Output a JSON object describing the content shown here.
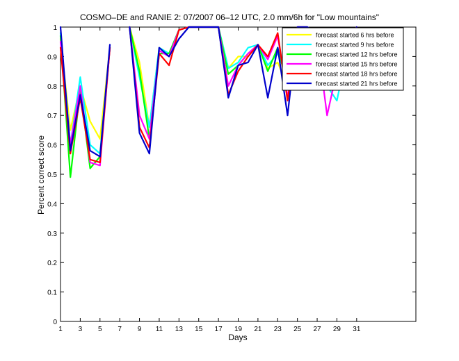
{
  "figure": {
    "title": "COSMO–DE and RANIE 2: 07/2007 06–12 UTC, 2.0 mm/6h for \"Low mountains\"",
    "xlabel": "Days",
    "ylabel": "Percent correct score"
  },
  "chart_data": {
    "type": "line",
    "title": "COSMO–DE and RANIE 2: 07/2007 06–12 UTC, 2.0 mm/6h for \"Low mountains\"",
    "xlabel": "Days",
    "ylabel": "Percent correct score",
    "xlim": [
      1,
      37
    ],
    "ylim": [
      0,
      1
    ],
    "xticks": [
      1,
      3,
      5,
      7,
      9,
      11,
      13,
      15,
      17,
      19,
      21,
      23,
      25,
      27,
      29,
      31
    ],
    "yticks": [
      0,
      0.1,
      0.2,
      0.3,
      0.4,
      0.5,
      0.6,
      0.7,
      0.8,
      0.9,
      1
    ],
    "legend_position": "top-right",
    "grid": false,
    "series": [
      {
        "name": "forecast started 6 hrs before",
        "color": "#ffff00",
        "points": [
          [
            1,
            0.96
          ],
          [
            2,
            0.65
          ],
          [
            3,
            0.8
          ],
          [
            4,
            0.68
          ],
          [
            5,
            0.62
          ],
          [
            6,
            0.93
          ],
          [
            8,
            1.0
          ],
          [
            9,
            0.88
          ],
          [
            10,
            0.66
          ],
          [
            11,
            0.93
          ],
          [
            12,
            0.91
          ],
          [
            13,
            0.99
          ],
          [
            14,
            1.0
          ],
          [
            15,
            1.0
          ],
          [
            16,
            1.0
          ],
          [
            17,
            1.0
          ],
          [
            18,
            0.86
          ],
          [
            19,
            0.9
          ],
          [
            20,
            0.9
          ],
          [
            21,
            0.94
          ],
          [
            22,
            0.86
          ],
          [
            23,
            0.88
          ],
          [
            24,
            0.8
          ],
          [
            25,
            1.0
          ],
          [
            26,
            1.0
          ],
          [
            27,
            0.98
          ],
          [
            28,
            0.81
          ],
          [
            29,
            0.87
          ],
          [
            30,
            0.95
          ],
          [
            31,
            1.0
          ]
        ]
      },
      {
        "name": "forecast started 9 hrs before",
        "color": "#00ffff",
        "points": [
          [
            1,
            0.98
          ],
          [
            2,
            0.6
          ],
          [
            3,
            0.83
          ],
          [
            4,
            0.6
          ],
          [
            5,
            0.57
          ],
          [
            6,
            0.93
          ],
          [
            8,
            1.0
          ],
          [
            9,
            0.83
          ],
          [
            10,
            0.66
          ],
          [
            11,
            0.93
          ],
          [
            12,
            0.91
          ],
          [
            13,
            0.99
          ],
          [
            14,
            1.0
          ],
          [
            15,
            1.0
          ],
          [
            16,
            1.0
          ],
          [
            17,
            1.0
          ],
          [
            18,
            0.86
          ],
          [
            19,
            0.88
          ],
          [
            20,
            0.93
          ],
          [
            21,
            0.94
          ],
          [
            22,
            0.87
          ],
          [
            23,
            0.91
          ],
          [
            24,
            0.84
          ],
          [
            25,
            1.0
          ],
          [
            26,
            1.0
          ],
          [
            27,
            0.97
          ],
          [
            28,
            0.8
          ],
          [
            29,
            0.75
          ],
          [
            30,
            0.91
          ],
          [
            31,
            1.0
          ]
        ]
      },
      {
        "name": "forecast started 12 hrs before",
        "color": "#00ff00",
        "points": [
          [
            1,
            0.97
          ],
          [
            2,
            0.49
          ],
          [
            3,
            0.79
          ],
          [
            4,
            0.52
          ],
          [
            5,
            0.56
          ],
          [
            6,
            0.93
          ],
          [
            8,
            1.0
          ],
          [
            9,
            0.85
          ],
          [
            10,
            0.62
          ],
          [
            11,
            0.91
          ],
          [
            12,
            0.91
          ],
          [
            13,
            0.99
          ],
          [
            14,
            1.0
          ],
          [
            15,
            1.0
          ],
          [
            16,
            1.0
          ],
          [
            17,
            1.0
          ],
          [
            18,
            0.84
          ],
          [
            19,
            0.87
          ],
          [
            20,
            0.91
          ],
          [
            21,
            0.94
          ],
          [
            22,
            0.85
          ],
          [
            23,
            0.93
          ],
          [
            24,
            0.8
          ],
          [
            25,
            1.0
          ],
          [
            26,
            1.0
          ],
          [
            27,
            0.96
          ],
          [
            28,
            0.83
          ],
          [
            29,
            0.86
          ],
          [
            30,
            0.95
          ],
          [
            31,
            1.0
          ]
        ]
      },
      {
        "name": "forecast started 15 hrs before",
        "color": "#ff00ff",
        "points": [
          [
            1,
            0.95
          ],
          [
            2,
            0.6
          ],
          [
            3,
            0.8
          ],
          [
            4,
            0.54
          ],
          [
            5,
            0.53
          ],
          [
            6,
            0.93
          ],
          [
            8,
            1.0
          ],
          [
            9,
            0.7
          ],
          [
            10,
            0.62
          ],
          [
            11,
            0.92
          ],
          [
            12,
            0.9
          ],
          [
            13,
            0.99
          ],
          [
            14,
            1.0
          ],
          [
            15,
            1.0
          ],
          [
            16,
            1.0
          ],
          [
            17,
            1.0
          ],
          [
            18,
            0.8
          ],
          [
            19,
            0.87
          ],
          [
            20,
            0.91
          ],
          [
            21,
            0.94
          ],
          [
            22,
            0.89
          ],
          [
            23,
            0.97
          ],
          [
            24,
            0.76
          ],
          [
            25,
            1.0
          ],
          [
            26,
            1.0
          ],
          [
            27,
            0.96
          ],
          [
            28,
            0.7
          ],
          [
            29,
            0.85
          ],
          [
            30,
            0.95
          ],
          [
            31,
            1.0
          ]
        ]
      },
      {
        "name": "forecast started 18 hrs before",
        "color": "#ff0000",
        "points": [
          [
            1,
            0.93
          ],
          [
            2,
            0.57
          ],
          [
            3,
            0.76
          ],
          [
            4,
            0.55
          ],
          [
            5,
            0.54
          ],
          [
            6,
            0.93
          ],
          [
            8,
            1.0
          ],
          [
            9,
            0.66
          ],
          [
            10,
            0.59
          ],
          [
            11,
            0.91
          ],
          [
            12,
            0.87
          ],
          [
            13,
            0.99
          ],
          [
            14,
            1.0
          ],
          [
            15,
            1.0
          ],
          [
            16,
            1.0
          ],
          [
            17,
            1.0
          ],
          [
            18,
            0.77
          ],
          [
            19,
            0.85
          ],
          [
            20,
            0.9
          ],
          [
            21,
            0.94
          ],
          [
            22,
            0.9
          ],
          [
            23,
            0.98
          ],
          [
            24,
            0.75
          ],
          [
            25,
            1.0
          ],
          [
            26,
            1.0
          ],
          [
            27,
            0.96
          ],
          [
            28,
            0.84
          ],
          [
            29,
            0.85
          ],
          [
            30,
            0.95
          ],
          [
            31,
            1.0
          ]
        ]
      },
      {
        "name": "forecast started 21 hrs before",
        "color": "#0000cc",
        "points": [
          [
            1,
            1.0
          ],
          [
            2,
            0.58
          ],
          [
            3,
            0.77
          ],
          [
            4,
            0.58
          ],
          [
            5,
            0.56
          ],
          [
            6,
            0.94
          ],
          [
            8,
            1.0
          ],
          [
            9,
            0.64
          ],
          [
            10,
            0.57
          ],
          [
            11,
            0.93
          ],
          [
            12,
            0.9
          ],
          [
            13,
            0.96
          ],
          [
            14,
            1.0
          ],
          [
            15,
            1.0
          ],
          [
            16,
            1.0
          ],
          [
            17,
            1.0
          ],
          [
            18,
            0.76
          ],
          [
            19,
            0.87
          ],
          [
            20,
            0.88
          ],
          [
            21,
            0.94
          ],
          [
            22,
            0.76
          ],
          [
            23,
            0.93
          ],
          [
            24,
            0.7
          ],
          [
            25,
            1.0
          ],
          [
            26,
            1.0
          ],
          [
            27,
            0.98
          ],
          [
            28,
            0.84
          ],
          [
            29,
            0.84
          ],
          [
            30,
            0.93
          ],
          [
            31,
            1.0
          ]
        ]
      }
    ]
  }
}
